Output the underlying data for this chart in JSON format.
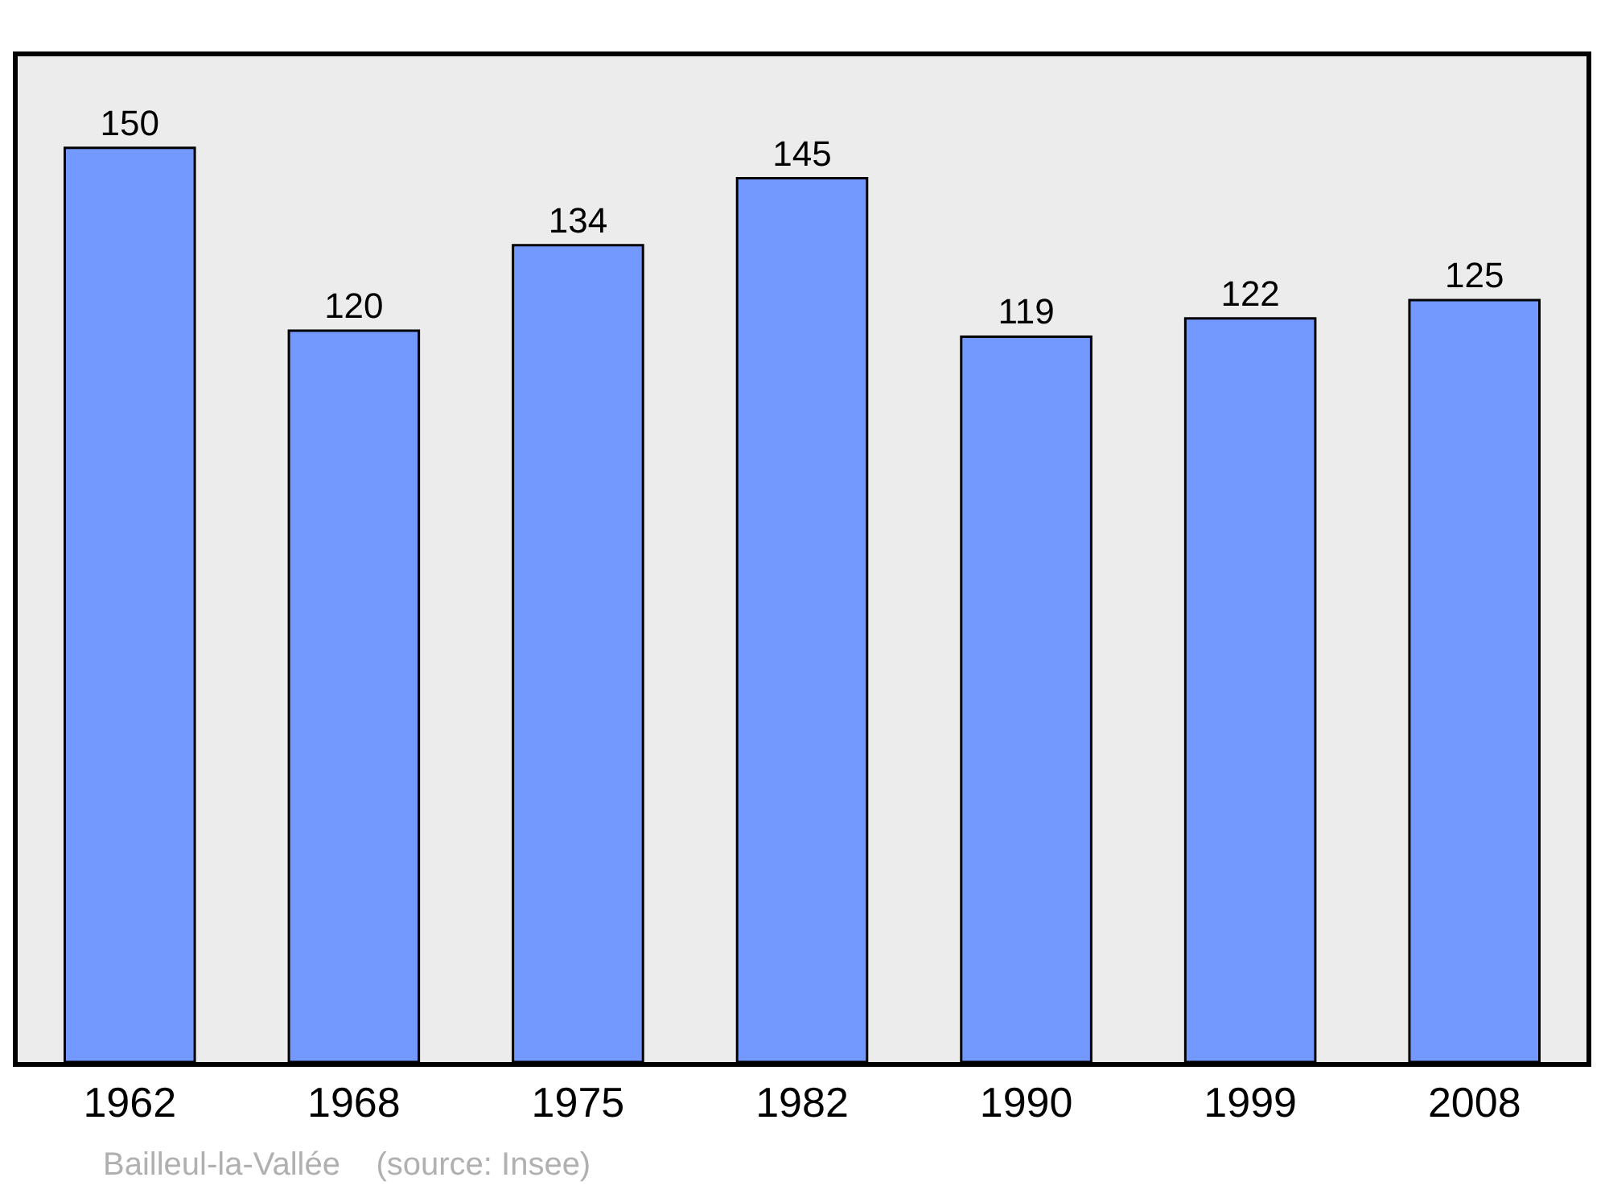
{
  "chart_data": {
    "type": "bar",
    "categories": [
      "1962",
      "1968",
      "1975",
      "1982",
      "1990",
      "1999",
      "2008"
    ],
    "values": [
      150,
      120,
      134,
      145,
      119,
      122,
      125
    ],
    "color": "#7399ff",
    "ylim": [
      0,
      165
    ],
    "tick_labels": "x",
    "data_labels": true,
    "grid": false,
    "legend": false,
    "annotations": [
      "Bailleul-la-Vallée    (source: Insee)"
    ]
  }
}
